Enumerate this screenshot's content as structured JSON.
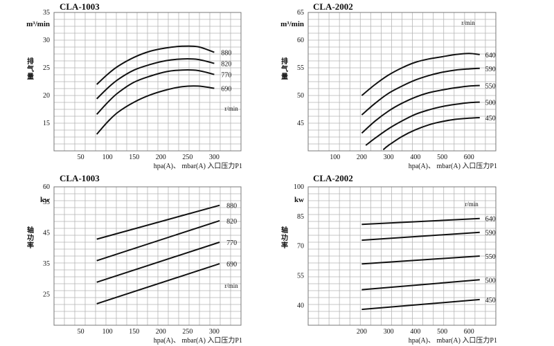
{
  "chart_data": [
    {
      "type": "line",
      "title": "CLA-1003",
      "ylabel": "排气量",
      "yunit": "m³/min",
      "xlabel": "hpa(A)、 mbar(A) 入口压力P1",
      "speed_label": "r/min",
      "xlim": [
        0,
        350
      ],
      "ylim": [
        10,
        35
      ],
      "xticks": [
        50,
        100,
        150,
        200,
        250,
        300
      ],
      "xtick_labels": [
        "50",
        "100",
        "150",
        "200",
        "250",
        "300"
      ],
      "yticks": [
        15,
        20,
        25,
        30,
        35
      ],
      "grid": true,
      "series": [
        {
          "name": "880",
          "x": [
            80,
            100,
            120,
            150,
            180,
            210,
            240,
            270,
            300
          ],
          "y": [
            22.0,
            23.8,
            25.3,
            26.9,
            28.0,
            28.6,
            28.9,
            28.8,
            27.8
          ]
        },
        {
          "name": "820",
          "x": [
            80,
            100,
            120,
            150,
            180,
            210,
            240,
            270,
            300
          ],
          "y": [
            19.4,
            21.3,
            22.9,
            24.6,
            25.6,
            26.3,
            26.6,
            26.5,
            25.8
          ]
        },
        {
          "name": "770",
          "x": [
            80,
            100,
            120,
            150,
            180,
            210,
            240,
            270,
            300
          ],
          "y": [
            16.6,
            18.7,
            20.5,
            22.4,
            23.5,
            24.3,
            24.6,
            24.5,
            23.8
          ]
        },
        {
          "name": "690",
          "x": [
            80,
            100,
            120,
            150,
            180,
            210,
            240,
            270,
            300
          ],
          "y": [
            13.0,
            15.2,
            17.0,
            18.8,
            20.1,
            21.0,
            21.6,
            21.7,
            21.3
          ]
        }
      ]
    },
    {
      "type": "line",
      "title": "CLA-2002",
      "ylabel": "排气量",
      "yunit": "m³/min",
      "xlabel": "hpa(A)、 mbar(A) 入口压力P1",
      "speed_label": "r/min",
      "xlim": [
        0,
        700
      ],
      "ylim": [
        40,
        65
      ],
      "xticks": [
        100,
        200,
        300,
        400,
        500,
        600
      ],
      "xtick_labels": [
        "100",
        "200",
        "300",
        "400",
        "500",
        "600"
      ],
      "yticks": [
        45,
        50,
        55,
        60,
        65
      ],
      "grid": true,
      "series": [
        {
          "name": "640",
          "x": [
            200,
            250,
            300,
            350,
            400,
            450,
            500,
            550,
            600,
            640
          ],
          "y": [
            50.0,
            52.0,
            53.7,
            55.0,
            56.0,
            56.6,
            57.0,
            57.4,
            57.6,
            57.4
          ]
        },
        {
          "name": "590",
          "x": [
            200,
            250,
            300,
            350,
            400,
            450,
            500,
            550,
            600,
            640
          ],
          "y": [
            46.5,
            48.6,
            50.4,
            51.7,
            52.8,
            53.6,
            54.2,
            54.6,
            54.8,
            54.9
          ]
        },
        {
          "name": "550",
          "x": [
            200,
            250,
            300,
            350,
            400,
            450,
            500,
            550,
            600,
            640
          ],
          "y": [
            43.2,
            45.4,
            47.2,
            48.6,
            49.7,
            50.5,
            51.0,
            51.4,
            51.7,
            51.8
          ]
        },
        {
          "name": "500",
          "x": [
            215,
            250,
            300,
            350,
            400,
            450,
            500,
            550,
            600,
            640
          ],
          "y": [
            41.0,
            42.3,
            44.0,
            45.4,
            46.6,
            47.4,
            48.0,
            48.4,
            48.7,
            48.8
          ]
        },
        {
          "name": "450",
          "x": [
            280,
            300,
            350,
            400,
            450,
            500,
            550,
            600,
            640
          ],
          "y": [
            40.2,
            41.0,
            42.6,
            43.8,
            44.7,
            45.3,
            45.7,
            45.9,
            46.0
          ]
        }
      ]
    },
    {
      "type": "line",
      "title": "CLA-1003",
      "ylabel": "轴功率",
      "yunit": "kw",
      "xlabel": "hpa(A)、 mbar(A) 入口压力P1",
      "speed_label": "r/min",
      "xlim": [
        0,
        350
      ],
      "ylim": [
        15,
        60
      ],
      "xticks": [
        50,
        100,
        150,
        200,
        250,
        300
      ],
      "xtick_labels": [
        "50",
        "100",
        "150",
        "200",
        "250",
        "300"
      ],
      "yticks": [
        25,
        35,
        45,
        55,
        60
      ],
      "grid": true,
      "series": [
        {
          "name": "880",
          "x": [
            80,
            310
          ],
          "y": [
            43.0,
            54.0
          ]
        },
        {
          "name": "820",
          "x": [
            80,
            310
          ],
          "y": [
            36.0,
            49.0
          ]
        },
        {
          "name": "770",
          "x": [
            80,
            310
          ],
          "y": [
            29.0,
            42.0
          ]
        },
        {
          "name": "690",
          "x": [
            80,
            310
          ],
          "y": [
            22.0,
            35.0
          ]
        }
      ]
    },
    {
      "type": "line",
      "title": "CLA-2002",
      "ylabel": "轴功率",
      "yunit": "kw",
      "xlabel": "hpa(A)、 mbar(A) 入口压力P1",
      "speed_label": "r/min",
      "xlim": [
        0,
        700
      ],
      "ylim": [
        30,
        100
      ],
      "xticks": [
        200,
        300,
        400,
        500,
        600
      ],
      "xtick_labels": [
        "200",
        "300",
        "400",
        "500",
        "600"
      ],
      "yticks": [
        40,
        55,
        70,
        85,
        100
      ],
      "grid": true,
      "series": [
        {
          "name": "640",
          "x": [
            200,
            640
          ],
          "y": [
            81.0,
            84.0
          ]
        },
        {
          "name": "590",
          "x": [
            200,
            640
          ],
          "y": [
            73.0,
            77.0
          ]
        },
        {
          "name": "550",
          "x": [
            200,
            640
          ],
          "y": [
            61.0,
            65.0
          ]
        },
        {
          "name": "500",
          "x": [
            200,
            640
          ],
          "y": [
            48.0,
            53.0
          ]
        },
        {
          "name": "450",
          "x": [
            200,
            640
          ],
          "y": [
            38.0,
            43.0
          ]
        }
      ]
    }
  ]
}
